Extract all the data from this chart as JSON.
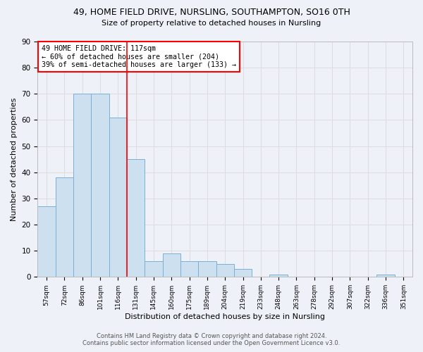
{
  "title": "49, HOME FIELD DRIVE, NURSLING, SOUTHAMPTON, SO16 0TH",
  "subtitle": "Size of property relative to detached houses in Nursling",
  "xlabel": "Distribution of detached houses by size in Nursling",
  "ylabel": "Number of detached properties",
  "footer_line1": "Contains HM Land Registry data © Crown copyright and database right 2024.",
  "footer_line2": "Contains public sector information licensed under the Open Government Licence v3.0.",
  "bin_labels": [
    "57sqm",
    "72sqm",
    "86sqm",
    "101sqm",
    "116sqm",
    "131sqm",
    "145sqm",
    "160sqm",
    "175sqm",
    "189sqm",
    "204sqm",
    "219sqm",
    "233sqm",
    "248sqm",
    "263sqm",
    "278sqm",
    "292sqm",
    "307sqm",
    "322sqm",
    "336sqm",
    "351sqm"
  ],
  "bar_values": [
    27,
    38,
    70,
    70,
    61,
    45,
    6,
    9,
    6,
    6,
    5,
    3,
    0,
    1,
    0,
    0,
    0,
    0,
    0,
    1,
    0
  ],
  "bar_color": "#cce0f0",
  "bar_edge_color": "#7aafd4",
  "grid_color": "#dddddd",
  "background_color": "#eef2f8",
  "vline_x": 4.5,
  "vline_color": "red",
  "annotation_line1": "49 HOME FIELD DRIVE: 117sqm",
  "annotation_line2": "← 60% of detached houses are smaller (204)",
  "annotation_line3": "39% of semi-detached houses are larger (133) →",
  "ylim": [
    0,
    90
  ],
  "yticks": [
    0,
    10,
    20,
    30,
    40,
    50,
    60,
    70,
    80,
    90
  ]
}
